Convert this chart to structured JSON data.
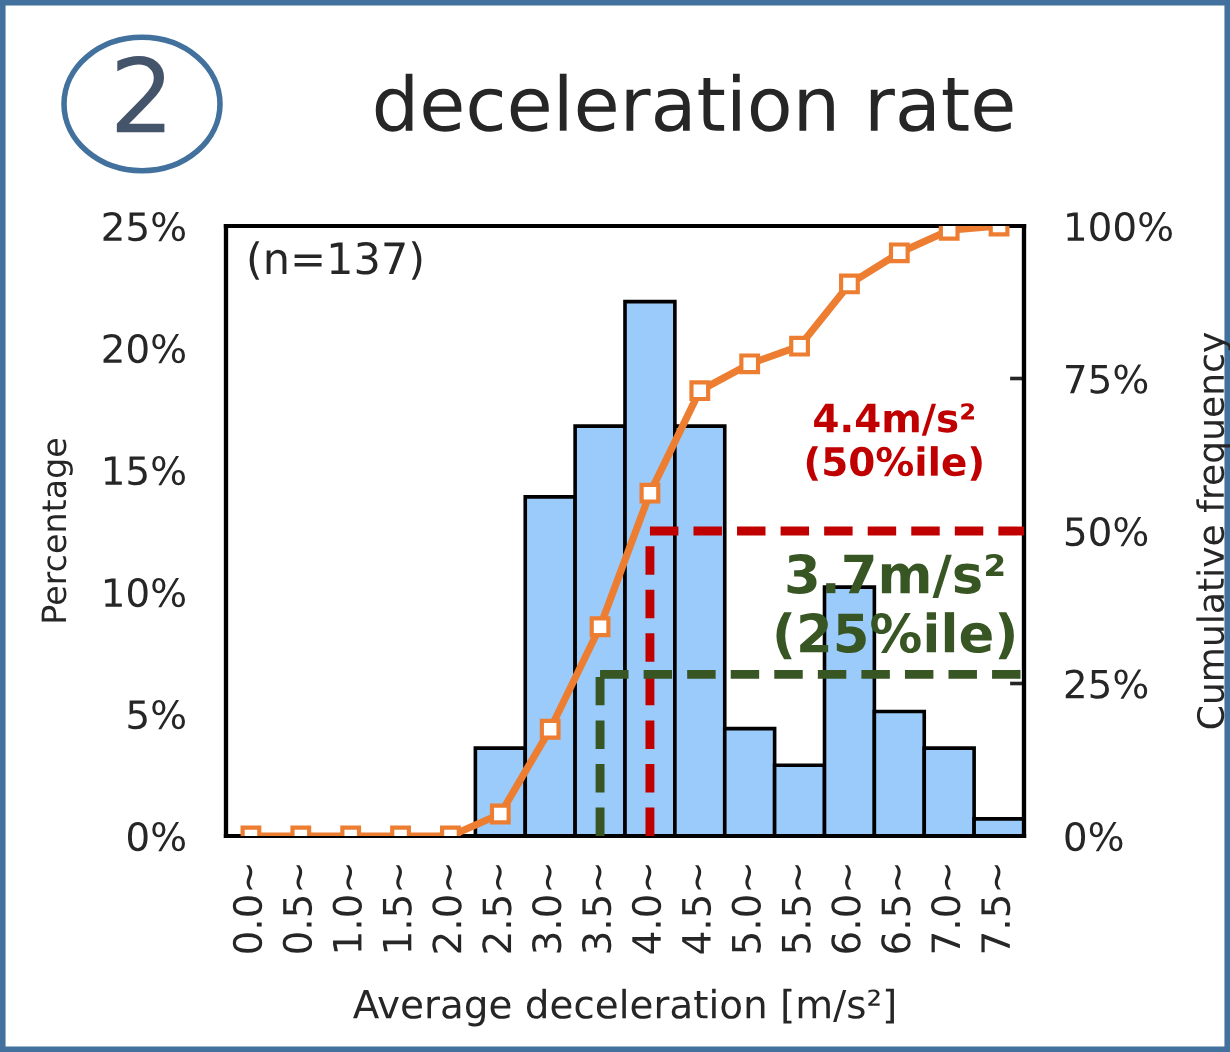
{
  "chart_data": {
    "type": "bar",
    "title": "deceleration rate",
    "xlabel": "Average deceleration [m/s²]",
    "ylabel": "Percentage",
    "y2label": "Cumulative frequency",
    "annotations": [
      "2",
      "(n=137)"
    ],
    "categories": [
      "0.0~",
      "0.5~",
      "1.0~",
      "1.5~",
      "2.0~",
      "2.5~",
      "3.0~",
      "3.5~",
      "4.0~",
      "4.5~",
      "5.0~",
      "5.5~",
      "6.0~",
      "6.5~",
      "7.0~",
      "7.5~"
    ],
    "ylim": [
      0,
      25
    ],
    "yticks": [
      {
        "value": 0,
        "label": "0%"
      },
      {
        "value": 5,
        "label": "5%"
      },
      {
        "value": 10,
        "label": "10%"
      },
      {
        "value": 15,
        "label": "15%"
      },
      {
        "value": 20,
        "label": "20%"
      },
      {
        "value": 25,
        "label": "25%"
      }
    ],
    "y2lim": [
      0,
      100
    ],
    "y2ticks": [
      {
        "value": 0,
        "label": "0%"
      },
      {
        "value": 25,
        "label": "25%"
      },
      {
        "value": 50,
        "label": "50%"
      },
      {
        "value": 75,
        "label": "75%"
      },
      {
        "value": 100,
        "label": "100%"
      }
    ],
    "series": [
      {
        "color": "#9bcbfa",
        "values": [
          0,
          0,
          0,
          0,
          0,
          3.6,
          13.9,
          16.8,
          21.9,
          16.8,
          4.4,
          2.9,
          10.2,
          5.1,
          3.6,
          0.7
        ]
      },
      {
        "type": "line",
        "axis": "y2",
        "color": "#ed7d31",
        "marker": "square",
        "values": [
          0,
          0,
          0,
          0,
          0,
          3.6,
          17.5,
          34.3,
          56.2,
          73.0,
          77.4,
          80.3,
          90.5,
          95.6,
          99.3,
          100
        ]
      }
    ],
    "ref_lines": [
      {
        "axis": "x",
        "value": "4.0~",
        "color": "#c00000",
        "line_style": "dashed"
      },
      {
        "axis": "y2",
        "value": 50,
        "label": "4.4m/s²\n(50%ile)",
        "color": "#c00000",
        "line_style": "dashed"
      },
      {
        "axis": "x",
        "value": "3.5~",
        "color": "#375623",
        "line_style": "dashed"
      },
      {
        "axis": "y2",
        "value": 26.5,
        "label": "3.7m/s²\n(25%ile)",
        "color": "#375623",
        "line_style": "dashed"
      }
    ],
    "legend": false,
    "grid": false
  }
}
